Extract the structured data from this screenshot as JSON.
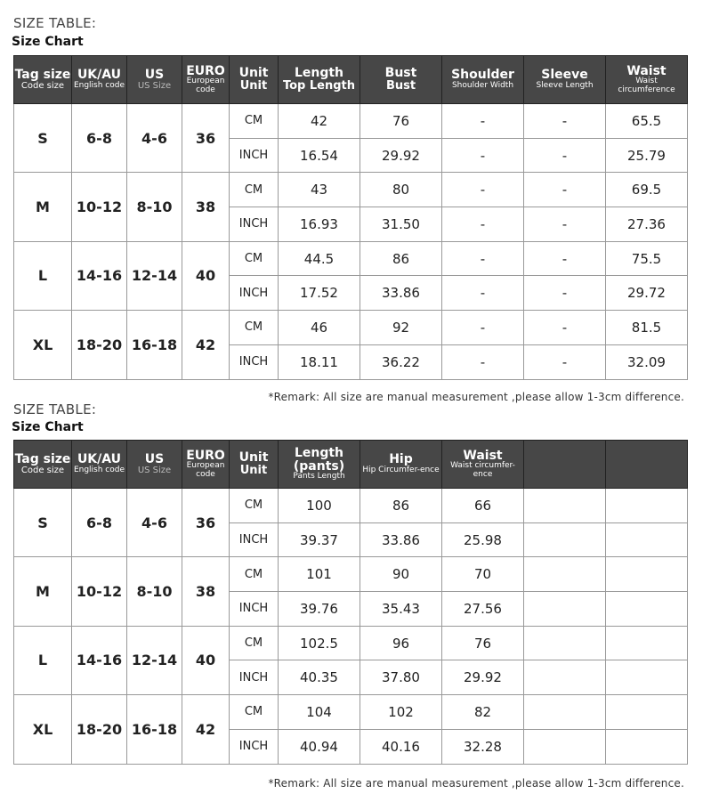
{
  "header_color": "#474747",
  "tables": [
    {
      "label": "SIZE TABLE:",
      "subtitle": "Size Chart",
      "headers": [
        {
          "main": "Tag size",
          "sub": "Code size"
        },
        {
          "main": "UK/AU",
          "sub": "English code"
        },
        {
          "main": "US",
          "sub": "US Size"
        },
        {
          "main": "EURO",
          "sub": "European code"
        },
        {
          "main": "Unit",
          "sub2": "Unit"
        },
        {
          "main": "Length",
          "sub2": "Top Length"
        },
        {
          "main": "Bust",
          "sub2": "Bust"
        },
        {
          "main": "Shoulder",
          "sub": "Shoulder Width"
        },
        {
          "main": "Sleeve",
          "sub": "Sleeve Length"
        },
        {
          "main": "Waist",
          "sub": "Waist circumference"
        }
      ],
      "sizes": [
        {
          "tag": "S",
          "uk": "6-8",
          "us": "4-6",
          "euro": "36",
          "cm": [
            "42",
            "76",
            "-",
            "-",
            "65.5"
          ],
          "inch": [
            "16.54",
            "29.92",
            "-",
            "-",
            "25.79"
          ]
        },
        {
          "tag": "M",
          "uk": "10-12",
          "us": "8-10",
          "euro": "38",
          "cm": [
            "43",
            "80",
            "-",
            "-",
            "69.5"
          ],
          "inch": [
            "16.93",
            "31.50",
            "-",
            "-",
            "27.36"
          ]
        },
        {
          "tag": "L",
          "uk": "14-16",
          "us": "12-14",
          "euro": "40",
          "cm": [
            "44.5",
            "86",
            "-",
            "-",
            "75.5"
          ],
          "inch": [
            "17.52",
            "33.86",
            "-",
            "-",
            "29.72"
          ]
        },
        {
          "tag": "XL",
          "uk": "18-20",
          "us": "16-18",
          "euro": "42",
          "cm": [
            "46",
            "92",
            "-",
            "-",
            "81.5"
          ],
          "inch": [
            "18.11",
            "36.22",
            "-",
            "-",
            "32.09"
          ]
        }
      ],
      "remark": "*Remark: All size are manual measurement ,please allow 1-3cm difference."
    },
    {
      "label": "SIZE TABLE:",
      "subtitle": "Size Chart",
      "headers": [
        {
          "main": "Tag size",
          "sub": "Code size"
        },
        {
          "main": "UK/AU",
          "sub": "English code"
        },
        {
          "main": "US",
          "sub": "US Size"
        },
        {
          "main": "EURO",
          "sub": "European code"
        },
        {
          "main": "Unit",
          "sub2": "Unit"
        },
        {
          "main": "Length (pants)",
          "sub": "Pants Length"
        },
        {
          "main": "Hip",
          "sub": "Hip Circumfer-ence"
        },
        {
          "main": "Waist",
          "sub": "Waist circumfer-ence"
        },
        {},
        {}
      ],
      "sizes": [
        {
          "tag": "S",
          "uk": "6-8",
          "us": "4-6",
          "euro": "36",
          "cm": [
            "100",
            "86",
            "66",
            "",
            ""
          ],
          "inch": [
            "39.37",
            "33.86",
            "25.98",
            "",
            ""
          ]
        },
        {
          "tag": "M",
          "uk": "10-12",
          "us": "8-10",
          "euro": "38",
          "cm": [
            "101",
            "90",
            "70",
            "",
            ""
          ],
          "inch": [
            "39.76",
            "35.43",
            "27.56",
            "",
            ""
          ]
        },
        {
          "tag": "L",
          "uk": "14-16",
          "us": "12-14",
          "euro": "40",
          "cm": [
            "102.5",
            "96",
            "76",
            "",
            ""
          ],
          "inch": [
            "40.35",
            "37.80",
            "29.92",
            "",
            ""
          ]
        },
        {
          "tag": "XL",
          "uk": "18-20",
          "us": "16-18",
          "euro": "42",
          "cm": [
            "104",
            "102",
            "82",
            "",
            ""
          ],
          "inch": [
            "40.94",
            "40.16",
            "32.28",
            "",
            ""
          ]
        }
      ],
      "remark": "*Remark: All size are manual measurement ,please allow 1-3cm difference."
    }
  ],
  "units": {
    "cm": "CM",
    "inch": "INCH"
  }
}
